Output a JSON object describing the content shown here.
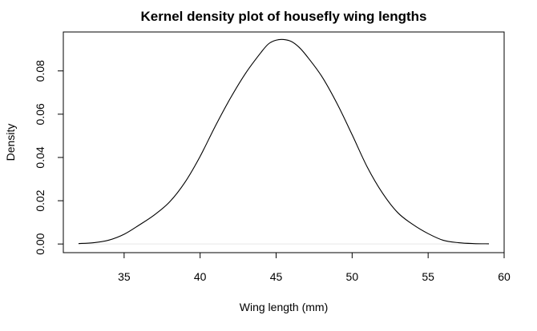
{
  "chart_data": {
    "type": "line",
    "title": "Kernel density plot of housefly wing lengths",
    "xlabel": "Wing length (mm)",
    "ylabel": "Density",
    "xlim": [
      31,
      60
    ],
    "ylim": [
      -0.004,
      0.098
    ],
    "x_ticks": [
      35,
      40,
      45,
      50,
      55,
      60
    ],
    "x_tick_labels": [
      "35",
      "40",
      "45",
      "50",
      "55",
      "60"
    ],
    "y_ticks": [
      0,
      0.02,
      0.04,
      0.06,
      0.08
    ],
    "y_tick_labels": [
      "0.00",
      "0.02",
      "0.04",
      "0.06",
      "0.08"
    ],
    "grid": false,
    "legend": "none",
    "baseline": 0,
    "series": [
      {
        "color": "#000000",
        "x": [
          32.0,
          33.0,
          34.0,
          35.0,
          36.0,
          37.0,
          38.0,
          39.0,
          40.0,
          41.0,
          42.0,
          43.0,
          44.0,
          44.5,
          45.0,
          45.5,
          46.0,
          46.5,
          47.0,
          48.0,
          49.0,
          50.0,
          51.0,
          52.0,
          53.0,
          54.0,
          55.0,
          56.0,
          57.0,
          58.0,
          59.0
        ],
        "y": [
          0.0002,
          0.0006,
          0.0018,
          0.0045,
          0.0088,
          0.0135,
          0.0195,
          0.0285,
          0.0405,
          0.0545,
          0.0675,
          0.079,
          0.0885,
          0.0925,
          0.0942,
          0.0945,
          0.0936,
          0.091,
          0.087,
          0.0775,
          0.065,
          0.0505,
          0.0355,
          0.0235,
          0.0145,
          0.009,
          0.0048,
          0.0017,
          0.0006,
          0.0002,
          0.0001
        ]
      }
    ]
  }
}
